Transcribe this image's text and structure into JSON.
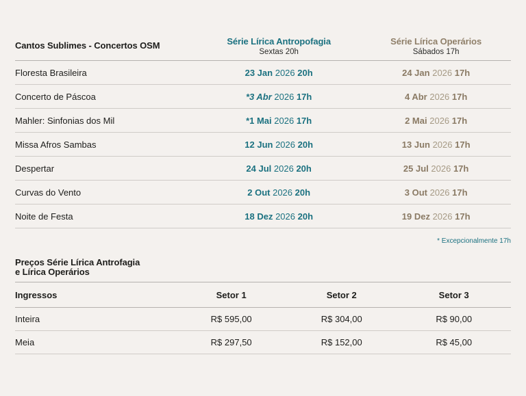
{
  "colors": {
    "teal": "#1b7180",
    "brown": "#8f7f69",
    "background": "#f4f1ee"
  },
  "schedule": {
    "title": "Cantos Sublimes - Concertos OSM",
    "series_a": {
      "label": "Série Lírica Antropofagia",
      "sublabel": "Sextas 20h"
    },
    "series_b": {
      "label": "Série Lírica Operários",
      "sublabel": "Sábados 17h"
    },
    "rows": [
      {
        "program": "Floresta Brasileira",
        "a": {
          "day": "23 Jan",
          "year": "2026",
          "time": "20h",
          "italic": false
        },
        "b": {
          "day": "24 Jan",
          "year": "2026",
          "time": "17h"
        }
      },
      {
        "program": "Concerto de Páscoa",
        "a": {
          "day": "*3 Abr",
          "year": "2026",
          "time": "17h",
          "italic": true
        },
        "b": {
          "day": "4 Abr",
          "year": "2026",
          "time": "17h"
        }
      },
      {
        "program": "Mahler: Sinfonias dos Mil",
        "a": {
          "day": "*1 Mai",
          "year": "2026",
          "time": "17h",
          "italic": false
        },
        "b": {
          "day": "2 Mai",
          "year": "2026",
          "time": "17h"
        }
      },
      {
        "program": "Missa Afros Sambas",
        "a": {
          "day": "12 Jun",
          "year": "2026",
          "time": "20h",
          "italic": false
        },
        "b": {
          "day": "13 Jun",
          "year": "2026",
          "time": "17h"
        }
      },
      {
        "program": "Despertar",
        "a": {
          "day": "24 Jul",
          "year": "2026",
          "time": "20h",
          "italic": false
        },
        "b": {
          "day": "25 Jul",
          "year": "2026",
          "time": "17h"
        }
      },
      {
        "program": "Curvas do Vento",
        "a": {
          "day": "2 Out",
          "year": "2026",
          "time": "20h",
          "italic": false
        },
        "b": {
          "day": "3 Out",
          "year": "2026",
          "time": "17h"
        }
      },
      {
        "program": "Noite de Festa",
        "a": {
          "day": "18 Dez",
          "year": "2026",
          "time": "20h",
          "italic": false
        },
        "b": {
          "day": "19 Dez",
          "year": "2026",
          "time": "17h"
        }
      }
    ],
    "footnote": "* Excepcionalmente 17h"
  },
  "prices": {
    "title_line1": "Preços Série Lírica Antrofagia",
    "title_line2": "e Lírica Operários",
    "headers": [
      "Ingressos",
      "Setor 1",
      "Setor 2",
      "Setor 3"
    ],
    "rows": [
      {
        "label": "Inteira",
        "values": [
          "R$ 595,00",
          "R$ 304,00",
          "R$ 90,00"
        ]
      },
      {
        "label": "Meia",
        "values": [
          "R$ 297,50",
          "R$ 152,00",
          "R$ 45,00"
        ]
      }
    ]
  }
}
